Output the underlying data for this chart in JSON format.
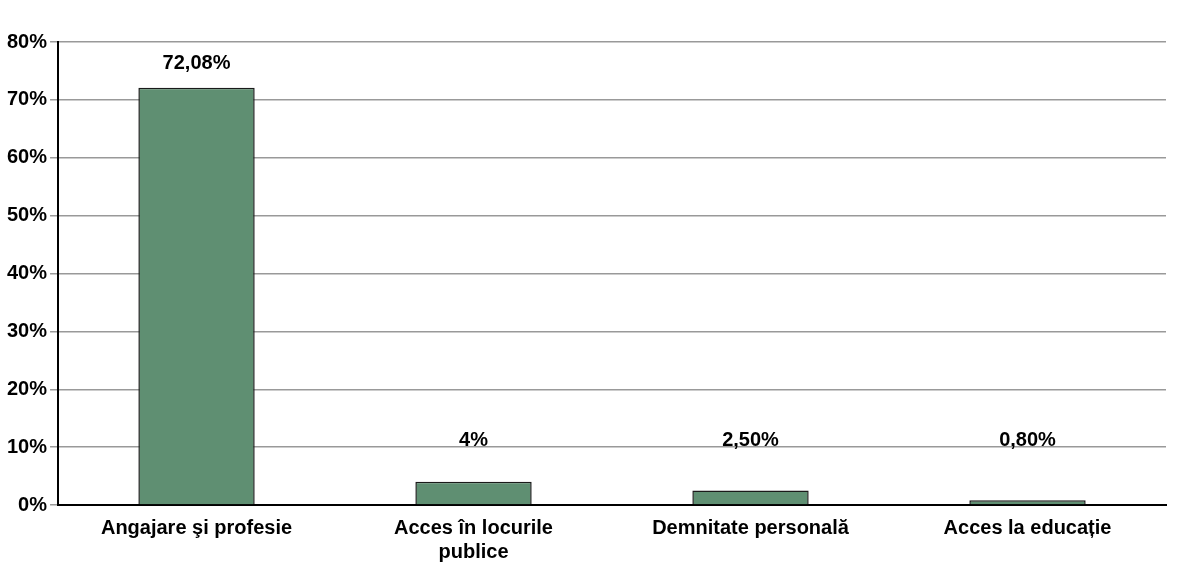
{
  "chart_data": {
    "type": "bar",
    "categories": [
      "Angajare şi profesie",
      "Acces în locurile publice",
      "Demnitate personală",
      "Acces la educație"
    ],
    "values": [
      72.08,
      4,
      2.5,
      0.8
    ],
    "value_labels": [
      "72,08%",
      "4%",
      "2,50%",
      "0,80%"
    ],
    "color": "#5f8f72",
    "ylim": [
      0,
      80
    ],
    "yticks": [
      {
        "value": 0,
        "label": "0%"
      },
      {
        "value": 10,
        "label": "10%"
      },
      {
        "value": 20,
        "label": "20%"
      },
      {
        "value": 30,
        "label": "30%"
      },
      {
        "value": 40,
        "label": "40%"
      },
      {
        "value": 50,
        "label": "50%"
      },
      {
        "value": 60,
        "label": "60%"
      },
      {
        "value": 70,
        "label": "70%"
      },
      {
        "value": 80,
        "label": "80%"
      }
    ],
    "grid": "y",
    "legend": false
  }
}
